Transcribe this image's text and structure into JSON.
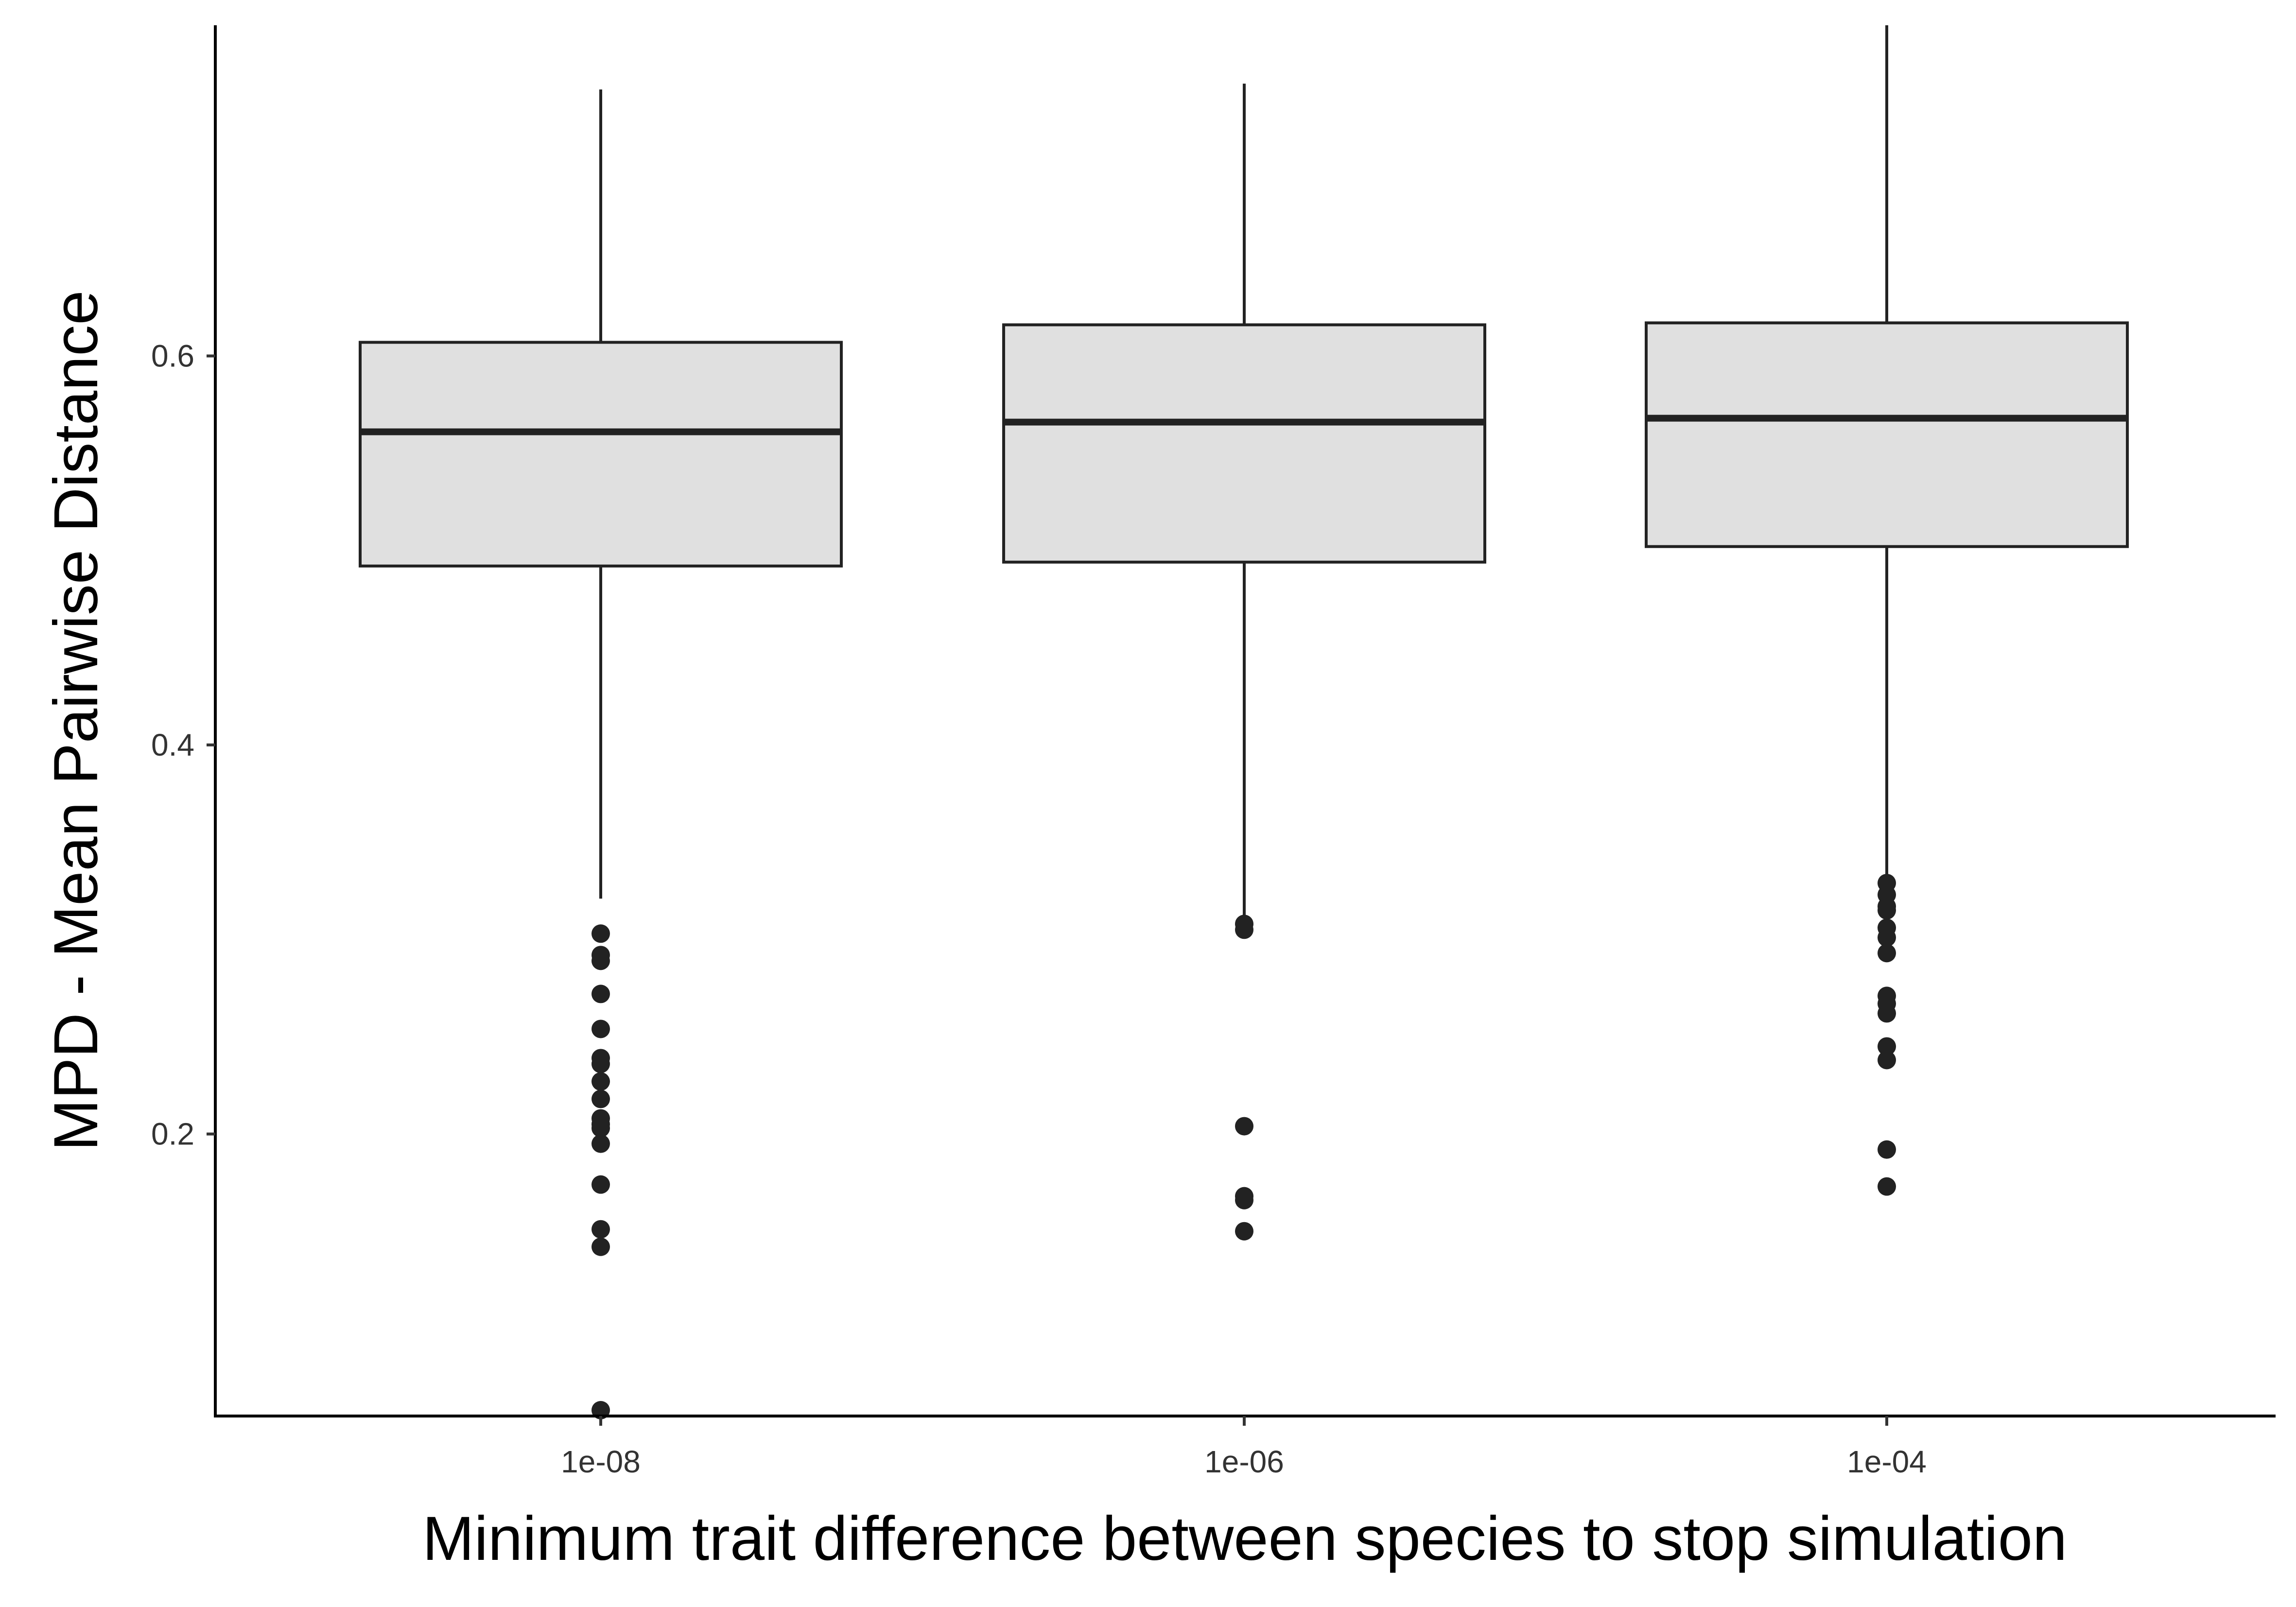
{
  "chart_data": {
    "type": "boxplot",
    "xlabel": "Minimum trait difference between species to stop simulation",
    "ylabel": "MPD - Mean Pairwise Distance",
    "ylim": [
      0.055,
      0.77
    ],
    "yticks": [
      0.2,
      0.4,
      0.6
    ],
    "ytick_labels": [
      "0.2",
      "0.4",
      "0.6"
    ],
    "categories": [
      "1e-08",
      "1e-06",
      "1e-04"
    ],
    "grid": false,
    "legend": "none",
    "box_fill": "#e0e0e0",
    "line_color": "#222222",
    "boxes": [
      {
        "category": "1e-08",
        "whisker_low": 0.321,
        "q1": 0.492,
        "median": 0.561,
        "q3": 0.607,
        "whisker_high": 0.737,
        "outliers": [
          0.303,
          0.292,
          0.289,
          0.272,
          0.254,
          0.239,
          0.236,
          0.227,
          0.218,
          0.208,
          0.205,
          0.203,
          0.195,
          0.174,
          0.151,
          0.142,
          0.058
        ]
      },
      {
        "category": "1e-06",
        "whisker_low": 0.311,
        "q1": 0.494,
        "median": 0.566,
        "q3": 0.616,
        "whisker_high": 0.74,
        "outliers": [
          0.308,
          0.305,
          0.204,
          0.168,
          0.166,
          0.15
        ]
      },
      {
        "category": "1e-04",
        "whisker_low": 0.333,
        "q1": 0.502,
        "median": 0.568,
        "q3": 0.617,
        "whisker_high": 0.77,
        "outliers": [
          0.329,
          0.323,
          0.317,
          0.315,
          0.306,
          0.301,
          0.293,
          0.271,
          0.267,
          0.262,
          0.245,
          0.238,
          0.192,
          0.173
        ]
      }
    ]
  }
}
